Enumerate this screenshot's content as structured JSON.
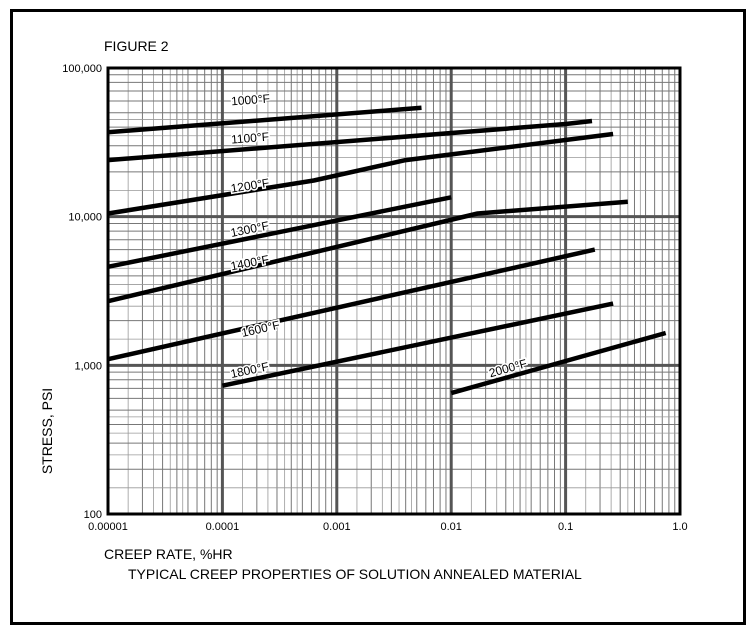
{
  "chart_data": {
    "type": "line",
    "figure_label": "FIGURE 2",
    "title": "TYPICAL CREEP PROPERTIES OF SOLUTION ANNEALED MATERIAL",
    "xlabel": "CREEP RATE, %HR",
    "ylabel": "STRESS, PSI",
    "x_scale": "log",
    "y_scale": "log",
    "xlim": [
      1e-05,
      1.0
    ],
    "ylim": [
      100,
      100000
    ],
    "grid": true,
    "x_ticks": [
      {
        "value": 1e-05,
        "label": "0.00001"
      },
      {
        "value": 0.0001,
        "label": "0.0001"
      },
      {
        "value": 0.001,
        "label": "0.001"
      },
      {
        "value": 0.01,
        "label": "0.01"
      },
      {
        "value": 0.1,
        "label": "0.1"
      },
      {
        "value": 1.0,
        "label": "1.0"
      }
    ],
    "y_ticks": [
      {
        "value": 100,
        "label": "100"
      },
      {
        "value": 1000,
        "label": "1,000"
      },
      {
        "value": 10000,
        "label": "10,000"
      },
      {
        "value": 100000,
        "label": "100,000"
      }
    ],
    "series": [
      {
        "name": "1000°F",
        "label_at": [
          0.00012,
          56000
        ],
        "points": [
          [
            1e-05,
            37000
          ],
          [
            0.0055,
            54000
          ]
        ]
      },
      {
        "name": "1100°F",
        "label_at": [
          0.00012,
          31000
        ],
        "points": [
          [
            1e-05,
            24000
          ],
          [
            0.1,
            42000
          ],
          [
            0.17,
            44000
          ]
        ]
      },
      {
        "name": "1200°F",
        "label_at": [
          0.00012,
          14500
        ],
        "points": [
          [
            1e-05,
            10500
          ],
          [
            0.00063,
            17500
          ],
          [
            0.004,
            24000
          ],
          [
            0.26,
            36000
          ]
        ]
      },
      {
        "name": "1300°F",
        "label_at": [
          0.00012,
          7300
        ],
        "points": [
          [
            1e-05,
            4600
          ],
          [
            0.01,
            13500
          ]
        ]
      },
      {
        "name": "1400°F",
        "label_at": [
          0.00012,
          4350
        ],
        "points": [
          [
            1e-05,
            2700
          ],
          [
            0.017,
            10500
          ],
          [
            0.35,
            12600
          ]
        ]
      },
      {
        "name": "1600°F",
        "label_at": [
          0.00015,
          1550
        ],
        "points": [
          [
            1e-05,
            1100
          ],
          [
            0.18,
            6000
          ]
        ]
      },
      {
        "name": "1800°F",
        "label_at": [
          0.00012,
          820
        ],
        "points": [
          [
            0.0001,
            730
          ],
          [
            0.26,
            2600
          ]
        ]
      },
      {
        "name": "2000°F",
        "label_at": [
          0.022,
          830
        ],
        "points": [
          [
            0.01,
            650
          ],
          [
            0.75,
            1650
          ]
        ]
      }
    ]
  }
}
